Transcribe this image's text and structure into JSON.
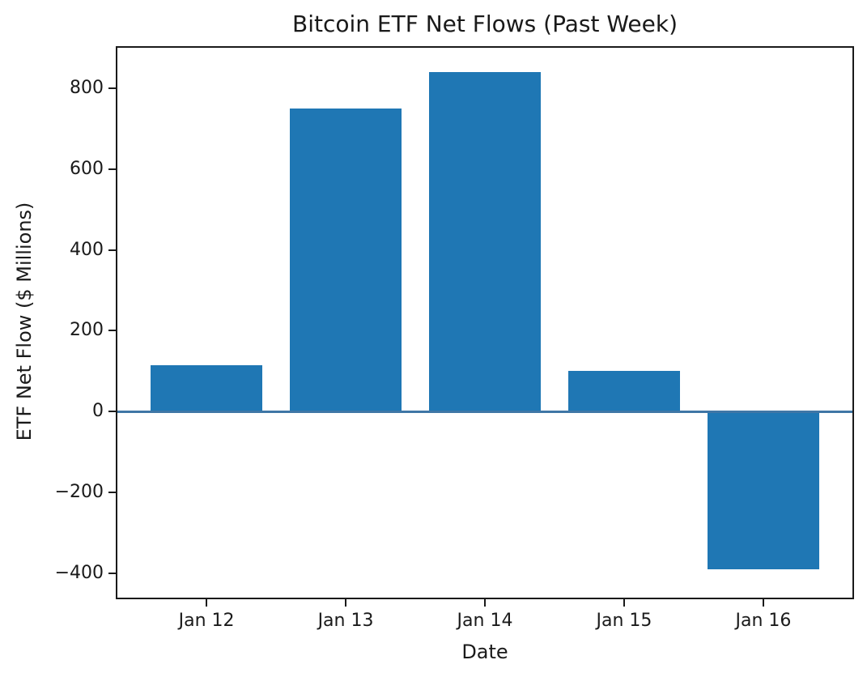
{
  "chart_data": {
    "type": "bar",
    "title": "Bitcoin ETF Net Flows (Past Week)",
    "xlabel": "Date",
    "ylabel": "ETF Net Flow ($ Millions)",
    "categories": [
      "Jan 12",
      "Jan 13",
      "Jan 14",
      "Jan 15",
      "Jan 16"
    ],
    "values": [
      115,
      750,
      840,
      100,
      -390
    ],
    "yticks": [
      800,
      600,
      400,
      200,
      0,
      -200,
      -400
    ],
    "ytick_labels": [
      "800",
      "600",
      "400",
      "200",
      "0",
      "−200",
      "−400"
    ],
    "ylim": [
      -460,
      900
    ],
    "x_margin_frac": 0.64,
    "bar_width_frac": 0.8,
    "bar_color": "#1f77b4",
    "zero_line_color": "#3f76a6",
    "axis_color": "#1a1a1a",
    "background_color": "#ffffff",
    "grid": false,
    "legend": "none"
  }
}
